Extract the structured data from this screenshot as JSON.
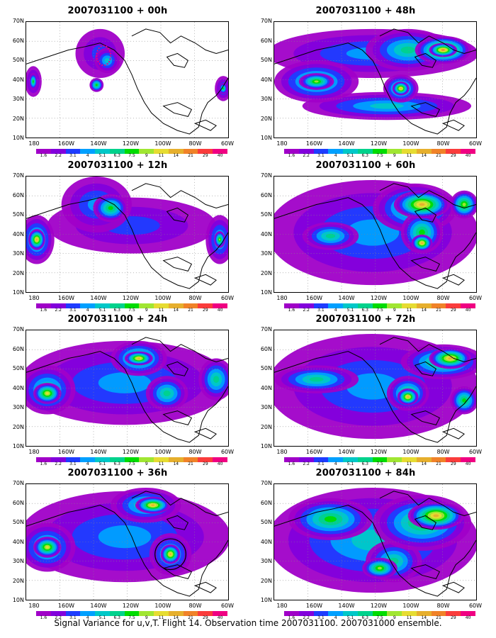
{
  "panels": [
    {
      "title": "2007031100 + 00h"
    },
    {
      "title": "2007031100 + 48h"
    },
    {
      "title": "2007031100 + 12h"
    },
    {
      "title": "2007031100 + 60h"
    },
    {
      "title": "2007031100 + 24h"
    },
    {
      "title": "2007031100 + 72h"
    },
    {
      "title": "2007031100 + 36h"
    },
    {
      "title": "2007031100 + 84h"
    }
  ],
  "axes": {
    "lat_labels": [
      "70N",
      "60N",
      "50N",
      "40N",
      "30N",
      "20N",
      "10N"
    ],
    "lon_labels": [
      "180",
      "160W",
      "140W",
      "120W",
      "100W",
      "80W",
      "60W"
    ]
  },
  "colorbar": {
    "labels": [
      "1.6",
      "2.2",
      "3.1",
      "4",
      "5.1",
      "6.3",
      "7.5",
      "9",
      "11",
      "14",
      "21",
      "29",
      "40"
    ],
    "colors": [
      "#a000c8",
      "#8200dc",
      "#1e3cff",
      "#00a0ff",
      "#00c8c8",
      "#00d28c",
      "#00dc00",
      "#a0e632",
      "#e6dc32",
      "#e6af2d",
      "#f08228",
      "#fa3c3c",
      "#f00082"
    ]
  },
  "caption": "Signal Variance for u,v,T. Flight 14. Observation time 2007031100. 2007031000 ensemble."
}
